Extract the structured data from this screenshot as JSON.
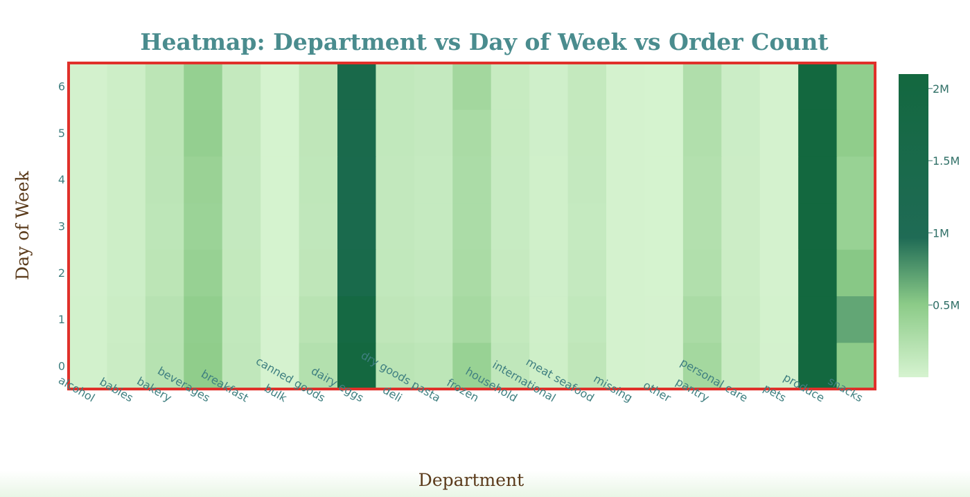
{
  "chart_data": {
    "type": "heatmap",
    "title": "Heatmap: Department vs Day of Week vs Order Count",
    "xlabel": "Department",
    "ylabel": "Day of Week",
    "x": [
      "alcohol",
      "babies",
      "bakery",
      "beverages",
      "breakfast",
      "bulk",
      "canned goods",
      "dairy eggs",
      "deli",
      "dry goods pasta",
      "frozen",
      "household",
      "international",
      "meat seafood",
      "missing",
      "other",
      "pantry",
      "personal care",
      "pets",
      "produce",
      "snacks"
    ],
    "y": [
      0,
      1,
      2,
      3,
      4,
      5,
      6
    ],
    "z": [
      [
        30000,
        85000,
        220000,
        480000,
        150000,
        7000,
        240000,
        2050000,
        190000,
        170000,
        420000,
        150000,
        55000,
        160000,
        14000,
        8000,
        340000,
        90000,
        20000,
        2100000,
        500000
      ],
      [
        25000,
        75000,
        210000,
        470000,
        140000,
        7000,
        200000,
        1880000,
        160000,
        140000,
        330000,
        130000,
        50000,
        140000,
        14000,
        7000,
        300000,
        85000,
        18000,
        2100000,
        680000
      ],
      [
        22000,
        65000,
        180000,
        430000,
        130000,
        6000,
        160000,
        1500000,
        140000,
        120000,
        300000,
        110000,
        45000,
        120000,
        12000,
        6000,
        250000,
        75000,
        16000,
        2100000,
        520000
      ],
      [
        22000,
        60000,
        170000,
        400000,
        120000,
        6000,
        150000,
        1400000,
        135000,
        115000,
        290000,
        100000,
        42000,
        115000,
        11000,
        5000,
        240000,
        70000,
        15000,
        2100000,
        420000
      ],
      [
        22000,
        60000,
        175000,
        410000,
        120000,
        6000,
        155000,
        1400000,
        135000,
        115000,
        290000,
        100000,
        42000,
        120000,
        11000,
        5000,
        240000,
        70000,
        15000,
        2100000,
        420000
      ],
      [
        23000,
        62000,
        180000,
        450000,
        125000,
        6000,
        160000,
        1450000,
        140000,
        120000,
        300000,
        105000,
        45000,
        125000,
        12000,
        6000,
        250000,
        72000,
        16000,
        2100000,
        480000
      ],
      [
        22000,
        62000,
        180000,
        440000,
        125000,
        6000,
        160000,
        1550000,
        140000,
        120000,
        350000,
        105000,
        45000,
        125000,
        12000,
        6000,
        260000,
        72000,
        16000,
        2100000,
        470000
      ]
    ],
    "zlim": [
      0,
      2100000
    ],
    "colorbar_ticks": [
      {
        "value": 500000,
        "label": "0.5M"
      },
      {
        "value": 1000000,
        "label": "1M"
      },
      {
        "value": 1500000,
        "label": "1.5M"
      },
      {
        "value": 2000000,
        "label": "2M"
      }
    ],
    "colorscale": [
      "#d6f3d0",
      "#8ccb88",
      "#1f6b55",
      "#13683f"
    ],
    "border_color": "#e0302a"
  }
}
